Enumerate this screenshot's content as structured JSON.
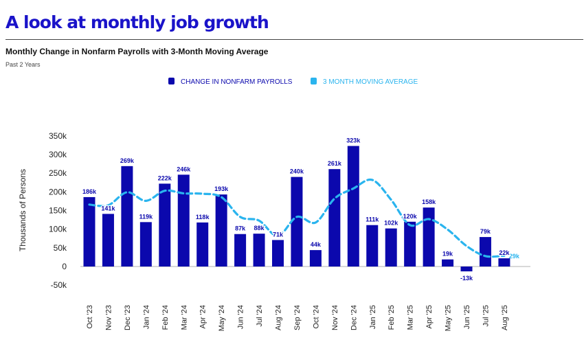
{
  "header": {
    "title": "A look at monthly job growth",
    "subtitle": "Monthly Change in Nonfarm Payrolls with 3-Month Moving Average",
    "period": "Past 2 Years"
  },
  "colors": {
    "title": "#1a13c9",
    "bar": "#0b08ad",
    "line": "#2ab4ee",
    "axis_text": "#222222",
    "label": "#0b08ad"
  },
  "chart_data": {
    "type": "bar",
    "ylabel": "Thousands of Persons",
    "ylim": [
      -50,
      350
    ],
    "yticks": [
      -50,
      0,
      50,
      100,
      150,
      200,
      250,
      300,
      350
    ],
    "ytick_labels": [
      "-50k",
      "0",
      "50k",
      "100k",
      "150k",
      "200k",
      "250k",
      "300k",
      "350k"
    ],
    "categories": [
      "Oct '23",
      "Nov '23",
      "Dec '23",
      "Jan '24",
      "Feb '24",
      "Mar '24",
      "Apr '24",
      "May '24",
      "Jun '24",
      "Jul '24",
      "Aug '24",
      "Sep '24",
      "Oct '24",
      "Nov '24",
      "Dec '24",
      "Jan '25",
      "Feb '25",
      "Mar '25",
      "Apr '25",
      "May '25",
      "Jun '25",
      "Jul '25",
      "Aug '25"
    ],
    "series": [
      {
        "name": "CHANGE IN NONFARM PAYROLLS",
        "type": "bar",
        "values": [
          186,
          141,
          269,
          119,
          222,
          246,
          118,
          193,
          87,
          88,
          71,
          240,
          44,
          261,
          323,
          111,
          102,
          120,
          158,
          19,
          -13,
          79,
          22
        ],
        "labels": [
          "186k",
          "141k",
          "269k",
          "119k",
          "222k",
          "246k",
          "118k",
          "193k",
          "87k",
          "88k",
          "71k",
          "240k",
          "44k",
          "261k",
          "323k",
          "111k",
          "102k",
          "120k",
          "158k",
          "19k",
          "-13k",
          "79k",
          "22k"
        ]
      },
      {
        "name": "3 MONTH MOVING AVERAGE",
        "type": "line",
        "style": "dashed",
        "values": [
          166,
          164,
          199,
          176,
          203,
          196,
          195,
          186,
          133,
          123,
          82,
          133,
          118,
          182,
          209,
          232,
          179,
          111,
          127,
          99,
          55,
          28,
          29
        ],
        "end_label": "29k"
      }
    ],
    "legend_position": "top-center"
  }
}
